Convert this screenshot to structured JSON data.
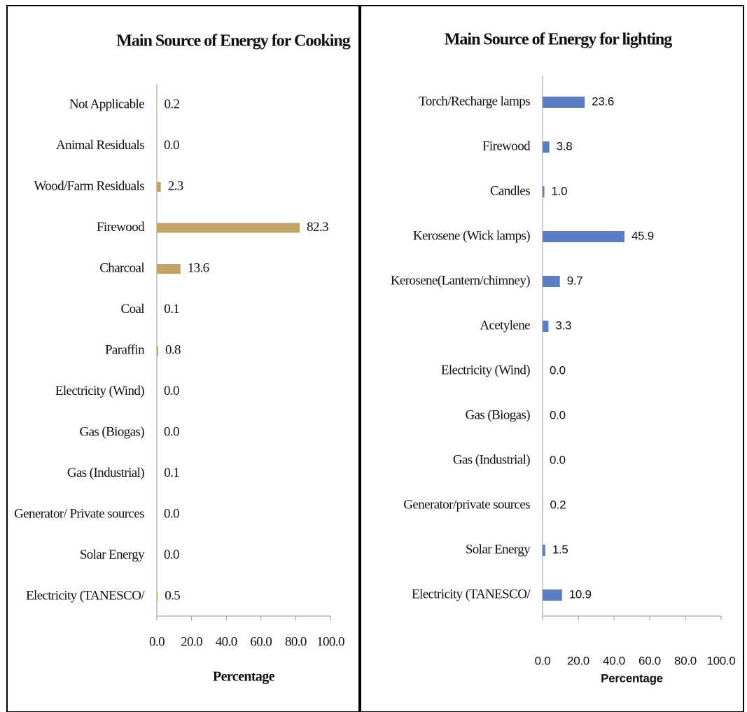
{
  "chart_data": [
    {
      "type": "bar",
      "orientation": "horizontal",
      "title": "Main Source of Energy for Cooking",
      "x_label": "Percentage",
      "color": "#c4a265",
      "categories": [
        "Not Applicable",
        "Animal Residuals",
        "Wood/Farm Residuals",
        "Firewood",
        "Charcoal",
        "Coal",
        "Paraffin",
        "Electricity (Wind)",
        "Gas (Biogas)",
        "Gas (Industrial)",
        "Generator/ Private sources",
        "Solar Energy",
        "Electricity (TANESCO/"
      ],
      "values": [
        0.2,
        0.0,
        2.3,
        82.3,
        13.6,
        0.1,
        0.8,
        0.0,
        0.0,
        0.1,
        0.0,
        0.0,
        0.5
      ],
      "value_labels": [
        "0.2",
        "0.0",
        "2.3",
        "82.3",
        "13.6",
        "0.1",
        "0.8",
        "0.0",
        "0.0",
        "0.1",
        "0.0",
        "0.0",
        "0.5"
      ],
      "xlim": [
        0,
        100
      ],
      "xticks": [
        {
          "value": 0,
          "label": "0.0"
        },
        {
          "value": 20,
          "label": "20.0"
        },
        {
          "value": 40,
          "label": "40.0"
        },
        {
          "value": 60,
          "label": "60.0"
        },
        {
          "value": 80,
          "label": "80.0"
        },
        {
          "value": 100,
          "label": "100.0"
        }
      ]
    },
    {
      "type": "bar",
      "orientation": "horizontal",
      "title": "Main Source of Energy for lighting",
      "x_label": "Percentage",
      "color": "#5a7ec6",
      "categories": [
        "Torch/Recharge lamps",
        "Firewood",
        "Candles",
        "Kerosene (Wick lamps)",
        "Kerosene(Lantern/chimney)",
        "Acetylene",
        "Electricity (Wind)",
        "Gas (Biogas)",
        "Gas (Industrial)",
        "Generator/private sources",
        "Solar Energy",
        "Electricity (TANESCO/"
      ],
      "values": [
        23.6,
        3.8,
        1.0,
        45.9,
        9.7,
        3.3,
        0.0,
        0.0,
        0.0,
        0.2,
        1.5,
        10.9
      ],
      "value_labels": [
        "23.6",
        "3.8",
        "1.0",
        "45.9",
        "9.7",
        "3.3",
        "0.0",
        "0.0",
        "0.0",
        "0.2",
        "1.5",
        "10.9"
      ],
      "xlim": [
        0,
        100
      ],
      "xticks": [
        {
          "value": 0,
          "label": "0.0"
        },
        {
          "value": 20,
          "label": "20.0"
        },
        {
          "value": 40,
          "label": "40.0"
        },
        {
          "value": 60,
          "label": "60.0"
        },
        {
          "value": 80,
          "label": "80.0"
        },
        {
          "value": 100,
          "label": "100.0"
        }
      ]
    }
  ]
}
